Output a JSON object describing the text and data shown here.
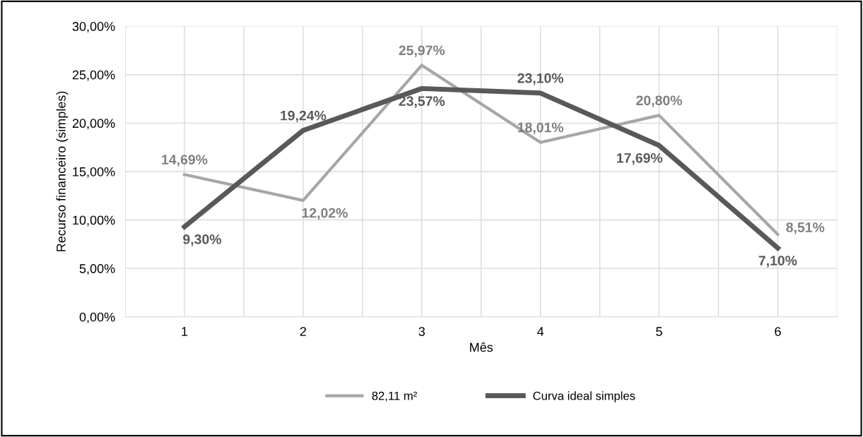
{
  "chart_data": {
    "type": "line",
    "xlabel": "Mês",
    "ylabel": "Recurso financeiro (simples)",
    "categories": [
      "1",
      "2",
      "3",
      "4",
      "5",
      "6"
    ],
    "series": [
      {
        "name": "82,11 m²",
        "color": "#a6a6a6",
        "values": [
          14.69,
          12.02,
          25.97,
          18.01,
          20.8,
          8.51
        ],
        "value_labels": [
          "14,69%",
          "12,02%",
          "25,97%",
          "18,01%",
          "20,80%",
          "8,51%"
        ]
      },
      {
        "name": "Curva ideal simples",
        "color": "#595959",
        "values": [
          9.3,
          19.24,
          23.57,
          23.1,
          17.69,
          7.1
        ],
        "value_labels": [
          "9,30%",
          "19,24%",
          "23,57%",
          "23,10%",
          "17,69%",
          "7,10%"
        ]
      }
    ],
    "ylim": [
      0,
      30
    ],
    "yticks": [
      {
        "value": 0,
        "label": "0,00%"
      },
      {
        "value": 5,
        "label": "5,00%"
      },
      {
        "value": 10,
        "label": "10,00%"
      },
      {
        "value": 15,
        "label": "15,00%"
      },
      {
        "value": 20,
        "label": "20,00%"
      },
      {
        "value": 25,
        "label": "25,00%"
      },
      {
        "value": 30,
        "label": "30,00%"
      }
    ],
    "grid": true,
    "legend": "bottom",
    "marker": "none",
    "line_style": "solid"
  }
}
